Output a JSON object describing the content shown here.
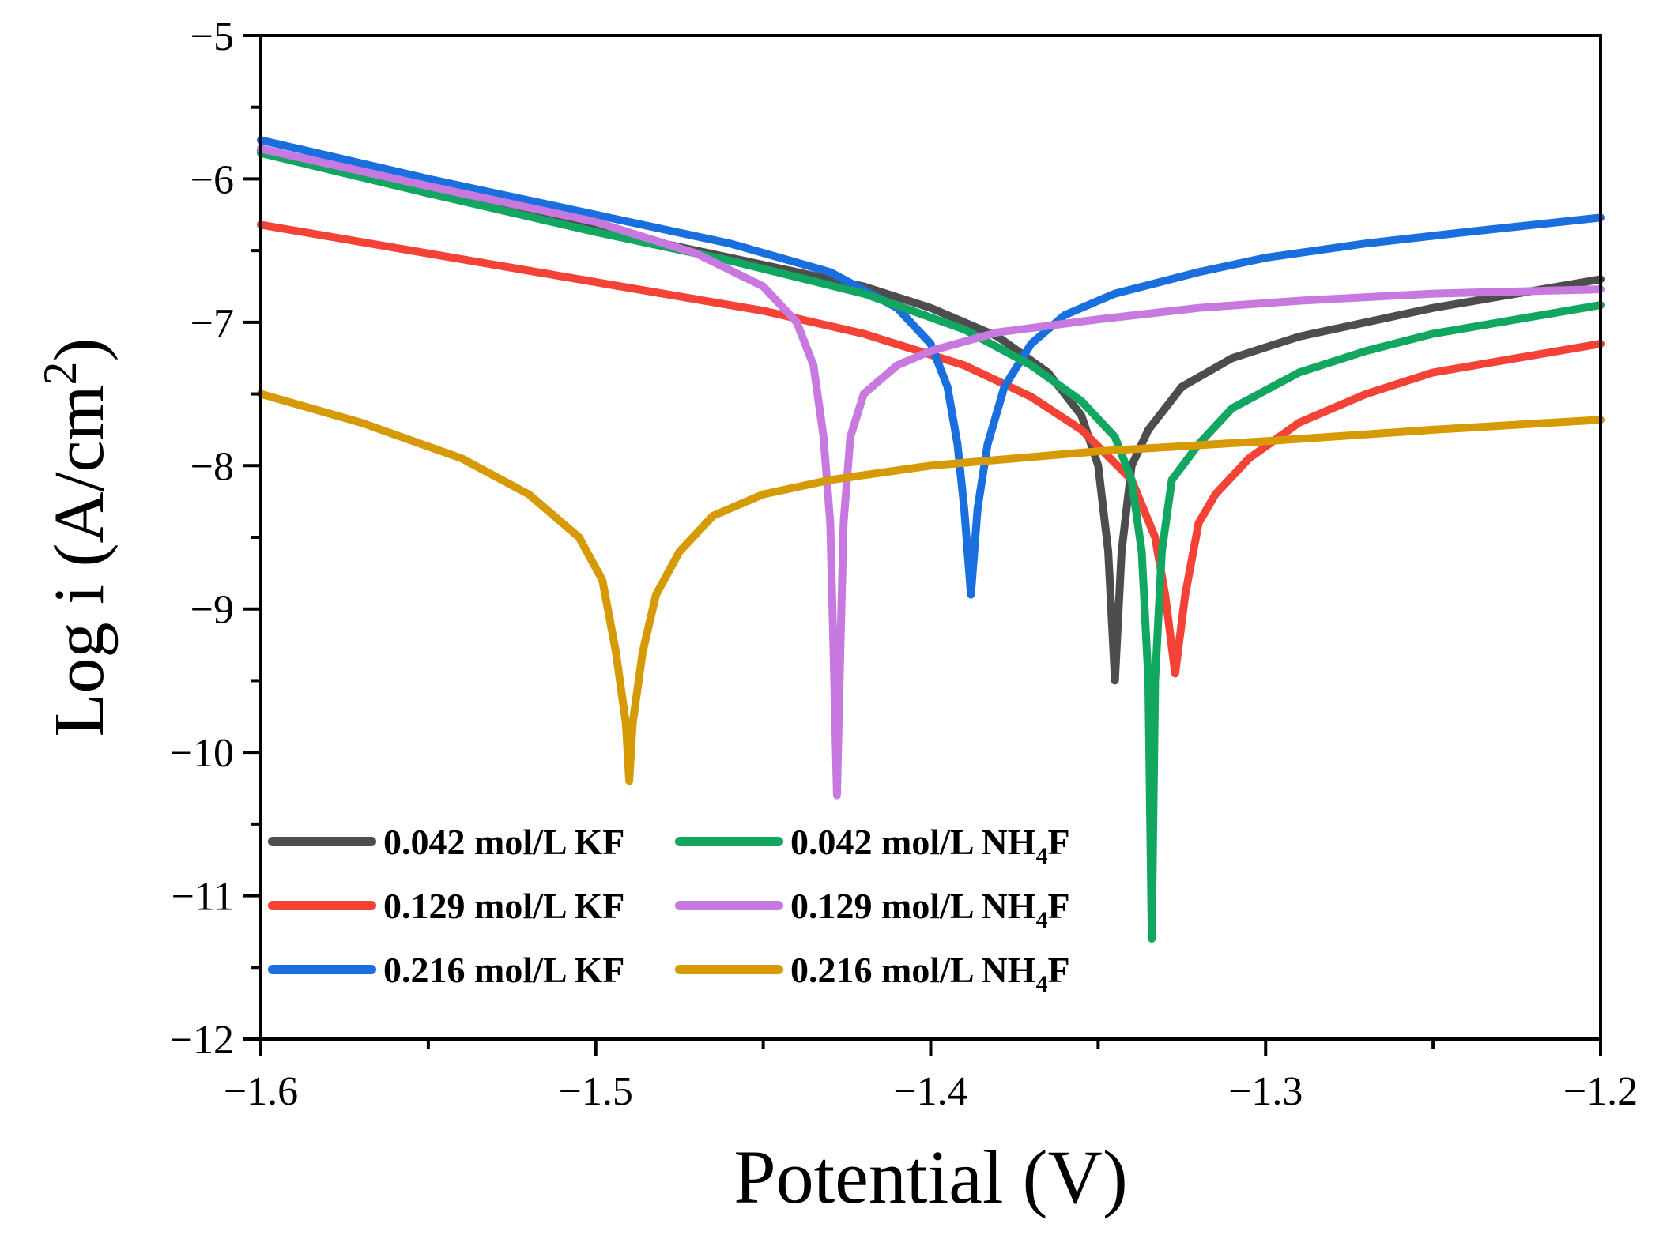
{
  "chart_data": {
    "type": "line",
    "xlabel": "Potential (V)",
    "ylabel_main": "Log i (A/cm",
    "ylabel_sup": "2",
    "ylabel_end": ")",
    "xlim": [
      -1.6,
      -1.2
    ],
    "ylim": [
      -12,
      -5
    ],
    "xticks": [
      -1.6,
      -1.5,
      -1.4,
      -1.3,
      -1.2
    ],
    "xtick_labels": [
      "−1.6",
      "−1.5",
      "−1.4",
      "−1.3",
      "−1.2"
    ],
    "yticks": [
      -12,
      -11,
      -10,
      -9,
      -8,
      -7,
      -6,
      -5
    ],
    "ytick_labels": [
      "−12",
      "−11",
      "−10",
      "−9",
      "−8",
      "−7",
      "−6",
      "−5"
    ],
    "grid": false,
    "legend_position": "bottom-left",
    "series": [
      {
        "name": "0.042 mol/L KF",
        "label_main": "0.042 mol/L KF",
        "label_sub": "",
        "label_end": "",
        "color": "#4d4d4d",
        "points": [
          [
            -1.6,
            -5.8
          ],
          [
            -1.55,
            -6.1
          ],
          [
            -1.5,
            -6.35
          ],
          [
            -1.46,
            -6.55
          ],
          [
            -1.42,
            -6.75
          ],
          [
            -1.4,
            -6.9
          ],
          [
            -1.38,
            -7.1
          ],
          [
            -1.365,
            -7.35
          ],
          [
            -1.355,
            -7.65
          ],
          [
            -1.35,
            -8.0
          ],
          [
            -1.347,
            -8.6
          ],
          [
            -1.345,
            -9.5
          ],
          [
            -1.343,
            -8.6
          ],
          [
            -1.34,
            -8.0
          ],
          [
            -1.335,
            -7.75
          ],
          [
            -1.325,
            -7.45
          ],
          [
            -1.31,
            -7.25
          ],
          [
            -1.29,
            -7.1
          ],
          [
            -1.27,
            -7.0
          ],
          [
            -1.25,
            -6.9
          ],
          [
            -1.225,
            -6.8
          ],
          [
            -1.2,
            -6.7
          ]
        ]
      },
      {
        "name": "0.129 mol/L KF",
        "label_main": "0.129 mol/L KF",
        "label_sub": "",
        "label_end": "",
        "color": "#f44236",
        "points": [
          [
            -1.6,
            -6.32
          ],
          [
            -1.55,
            -6.52
          ],
          [
            -1.5,
            -6.72
          ],
          [
            -1.45,
            -6.92
          ],
          [
            -1.42,
            -7.08
          ],
          [
            -1.39,
            -7.3
          ],
          [
            -1.37,
            -7.52
          ],
          [
            -1.355,
            -7.75
          ],
          [
            -1.34,
            -8.1
          ],
          [
            -1.333,
            -8.5
          ],
          [
            -1.33,
            -8.9
          ],
          [
            -1.327,
            -9.45
          ],
          [
            -1.324,
            -8.9
          ],
          [
            -1.32,
            -8.4
          ],
          [
            -1.315,
            -8.2
          ],
          [
            -1.305,
            -7.95
          ],
          [
            -1.29,
            -7.7
          ],
          [
            -1.27,
            -7.5
          ],
          [
            -1.25,
            -7.35
          ],
          [
            -1.225,
            -7.25
          ],
          [
            -1.2,
            -7.15
          ]
        ]
      },
      {
        "name": "0.216 mol/L KF",
        "label_main": "0.216 mol/L KF",
        "label_sub": "",
        "label_end": "",
        "color": "#1a6fdf",
        "points": [
          [
            -1.6,
            -5.73
          ],
          [
            -1.55,
            -6.0
          ],
          [
            -1.5,
            -6.25
          ],
          [
            -1.46,
            -6.45
          ],
          [
            -1.43,
            -6.65
          ],
          [
            -1.41,
            -6.9
          ],
          [
            -1.4,
            -7.15
          ],
          [
            -1.395,
            -7.45
          ],
          [
            -1.392,
            -7.85
          ],
          [
            -1.39,
            -8.3
          ],
          [
            -1.388,
            -8.9
          ],
          [
            -1.386,
            -8.3
          ],
          [
            -1.383,
            -7.85
          ],
          [
            -1.378,
            -7.45
          ],
          [
            -1.37,
            -7.15
          ],
          [
            -1.36,
            -6.95
          ],
          [
            -1.345,
            -6.8
          ],
          [
            -1.32,
            -6.65
          ],
          [
            -1.3,
            -6.55
          ],
          [
            -1.27,
            -6.45
          ],
          [
            -1.24,
            -6.37
          ],
          [
            -1.2,
            -6.27
          ]
        ]
      },
      {
        "name": "0.042 mol/L NH4F",
        "label_main": "0.042 mol/L NH",
        "label_sub": "4",
        "label_end": "F",
        "color": "#12a761",
        "points": [
          [
            -1.6,
            -5.82
          ],
          [
            -1.55,
            -6.1
          ],
          [
            -1.5,
            -6.37
          ],
          [
            -1.46,
            -6.57
          ],
          [
            -1.42,
            -6.8
          ],
          [
            -1.39,
            -7.05
          ],
          [
            -1.37,
            -7.3
          ],
          [
            -1.355,
            -7.55
          ],
          [
            -1.345,
            -7.8
          ],
          [
            -1.34,
            -8.1
          ],
          [
            -1.337,
            -8.6
          ],
          [
            -1.335,
            -9.5
          ],
          [
            -1.334,
            -11.3
          ],
          [
            -1.333,
            -9.5
          ],
          [
            -1.331,
            -8.6
          ],
          [
            -1.328,
            -8.1
          ],
          [
            -1.32,
            -7.85
          ],
          [
            -1.31,
            -7.6
          ],
          [
            -1.29,
            -7.35
          ],
          [
            -1.27,
            -7.2
          ],
          [
            -1.25,
            -7.08
          ],
          [
            -1.225,
            -6.98
          ],
          [
            -1.2,
            -6.88
          ]
        ]
      },
      {
        "name": "0.129 mol/L NH4F",
        "label_main": "0.129 mol/L NH",
        "label_sub": "4",
        "label_end": "F",
        "color": "#c879e0",
        "points": [
          [
            -1.6,
            -5.79
          ],
          [
            -1.55,
            -6.05
          ],
          [
            -1.5,
            -6.3
          ],
          [
            -1.47,
            -6.52
          ],
          [
            -1.45,
            -6.75
          ],
          [
            -1.44,
            -7.0
          ],
          [
            -1.435,
            -7.3
          ],
          [
            -1.432,
            -7.8
          ],
          [
            -1.43,
            -8.4
          ],
          [
            -1.429,
            -9.3
          ],
          [
            -1.428,
            -10.3
          ],
          [
            -1.427,
            -9.3
          ],
          [
            -1.426,
            -8.4
          ],
          [
            -1.424,
            -7.8
          ],
          [
            -1.42,
            -7.5
          ],
          [
            -1.41,
            -7.3
          ],
          [
            -1.4,
            -7.2
          ],
          [
            -1.38,
            -7.07
          ],
          [
            -1.35,
            -6.98
          ],
          [
            -1.32,
            -6.9
          ],
          [
            -1.29,
            -6.85
          ],
          [
            -1.25,
            -6.8
          ],
          [
            -1.2,
            -6.77
          ]
        ]
      },
      {
        "name": "0.216 mol/L NH4F",
        "label_main": "0.216 mol/L NH",
        "label_sub": "4",
        "label_end": "F",
        "color": "#d59a05",
        "points": [
          [
            -1.6,
            -7.5
          ],
          [
            -1.57,
            -7.7
          ],
          [
            -1.54,
            -7.95
          ],
          [
            -1.52,
            -8.2
          ],
          [
            -1.505,
            -8.5
          ],
          [
            -1.498,
            -8.8
          ],
          [
            -1.494,
            -9.3
          ],
          [
            -1.491,
            -9.8
          ],
          [
            -1.49,
            -10.2
          ],
          [
            -1.489,
            -9.8
          ],
          [
            -1.486,
            -9.3
          ],
          [
            -1.482,
            -8.9
          ],
          [
            -1.475,
            -8.6
          ],
          [
            -1.465,
            -8.35
          ],
          [
            -1.45,
            -8.2
          ],
          [
            -1.43,
            -8.1
          ],
          [
            -1.4,
            -8.0
          ],
          [
            -1.35,
            -7.9
          ],
          [
            -1.3,
            -7.83
          ],
          [
            -1.25,
            -7.75
          ],
          [
            -1.2,
            -7.68
          ]
        ]
      }
    ]
  }
}
